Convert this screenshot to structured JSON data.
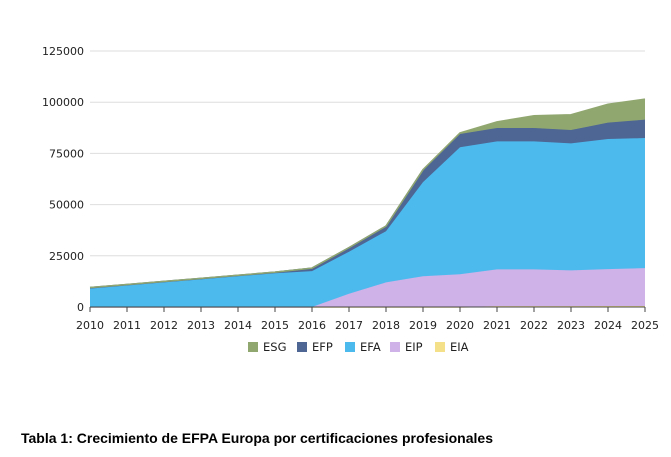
{
  "chart_data": {
    "type": "area",
    "stacked": true,
    "x": [
      2010,
      2011,
      2012,
      2013,
      2014,
      2015,
      2016,
      2017,
      2018,
      2019,
      2020,
      2021,
      2022,
      2023,
      2024,
      2025
    ],
    "y_ticks": [
      "0",
      "25000",
      "50000",
      "75000",
      "100000",
      "125000"
    ],
    "ylim": [
      0,
      125000
    ],
    "grid": true,
    "legend_position": "bottom",
    "series": [
      {
        "name": "EIA",
        "color": "#F5E08A",
        "values": [
          0,
          0,
          0,
          0,
          0,
          0,
          0,
          0,
          0,
          0,
          0,
          400,
          400,
          400,
          500,
          500
        ]
      },
      {
        "name": "EIP",
        "color": "#CFB2E8",
        "values": [
          0,
          0,
          0,
          0,
          0,
          0,
          0,
          6500,
          12000,
          15000,
          16000,
          18000,
          18000,
          17500,
          18000,
          18500
        ]
      },
      {
        "name": "EFA",
        "color": "#4DBAEE",
        "values": [
          9000,
          10500,
          12000,
          13500,
          15000,
          16500,
          17500,
          20500,
          25000,
          46000,
          62000,
          62500,
          62500,
          62000,
          63500,
          63500
        ]
      },
      {
        "name": "EFP",
        "color": "#4E6693",
        "values": [
          500,
          500,
          500,
          500,
          500,
          500,
          1500,
          2000,
          2500,
          6000,
          6500,
          6500,
          6500,
          6500,
          8000,
          9000
        ]
      },
      {
        "name": "ESG",
        "color": "#91A770",
        "values": [
          0,
          0,
          0,
          0,
          0,
          0,
          0,
          0,
          0,
          0,
          500,
          3000,
          6000,
          7500,
          9000,
          10000
        ]
      }
    ],
    "legend_order": [
      "ESG",
      "EFP",
      "EFA",
      "EIP",
      "EIA"
    ]
  },
  "caption": "Tabla 1: Crecimiento de EFPA Europa por certificaciones profesionales"
}
